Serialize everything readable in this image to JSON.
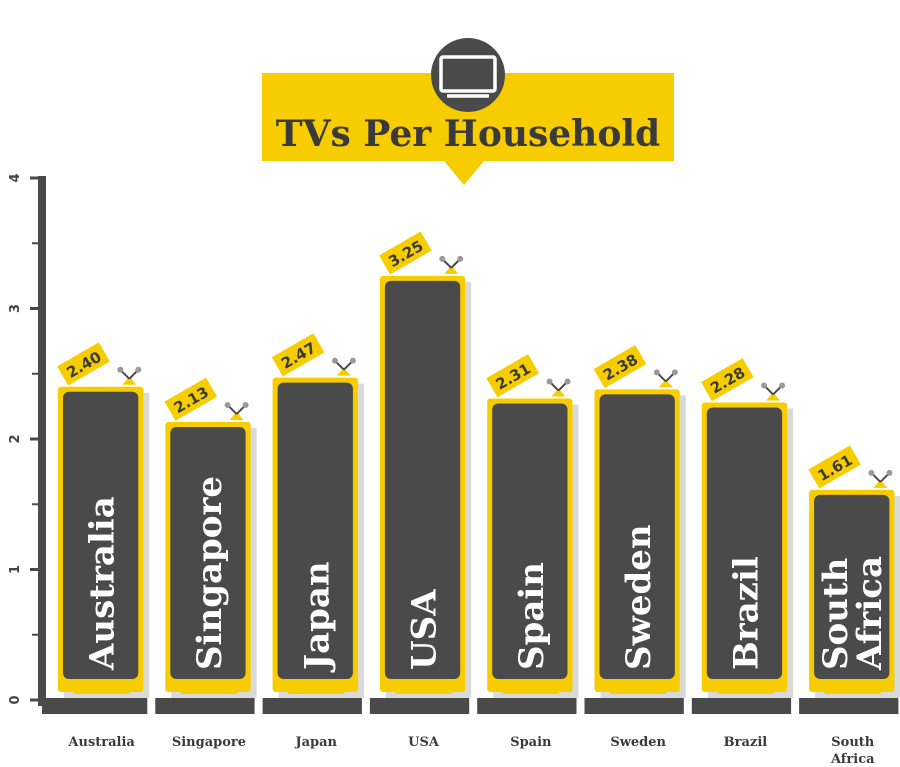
{
  "chart_data": {
    "type": "bar",
    "title": "TVs Per Household",
    "categories": [
      "Australia",
      "Singapore",
      "Japan",
      "USA",
      "Spain",
      "Sweden",
      "Brazil",
      "South Africa"
    ],
    "values": [
      2.4,
      2.13,
      2.47,
      3.25,
      2.31,
      2.38,
      2.28,
      1.61
    ],
    "value_labels": [
      "2.40",
      "2.13",
      "2.47",
      "3.25",
      "2.31",
      "2.38",
      "2.28",
      "1.61"
    ],
    "y_ticks": [
      "0",
      "1",
      "2",
      "3",
      "4"
    ],
    "ylim": [
      0,
      4
    ],
    "xlabel": "",
    "ylabel": "",
    "grid": false,
    "legend": "none"
  },
  "colors": {
    "accent_yellow": "#f8cd00",
    "bar_dark": "#4a4a4a",
    "shadow_gray": "#d9d9d9",
    "text_dark": "#3a3a3a"
  },
  "icons": {
    "title_icon": "tv-icon"
  }
}
